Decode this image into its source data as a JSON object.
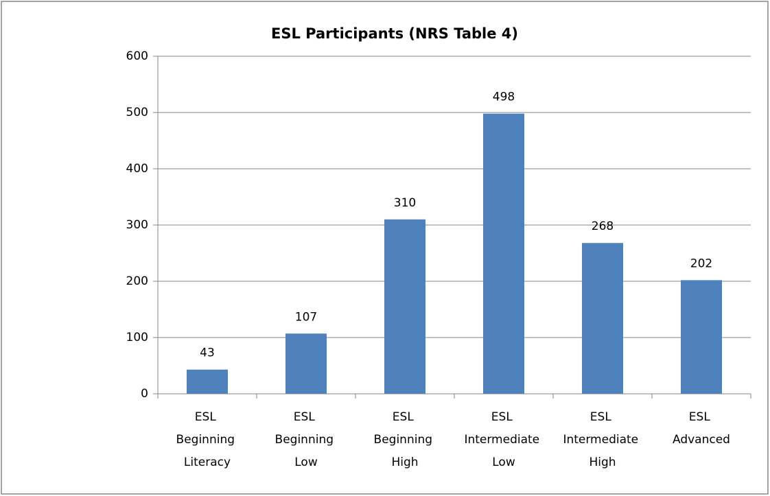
{
  "chart_data": {
    "type": "bar",
    "title": "ESL Participants (NRS Table 4)",
    "categories": [
      "ESL Beginning Literacy",
      "ESL Beginning Low",
      "ESL Beginning High",
      "ESL Intermediate Low",
      "ESL Intermediate High",
      "ESL Advanced"
    ],
    "values": [
      43,
      107,
      310,
      498,
      268,
      202
    ],
    "color": "#4f81bd",
    "ylim": [
      0,
      600
    ],
    "yticks": [
      0,
      100,
      200,
      300,
      400,
      500,
      600
    ],
    "grid": true
  }
}
